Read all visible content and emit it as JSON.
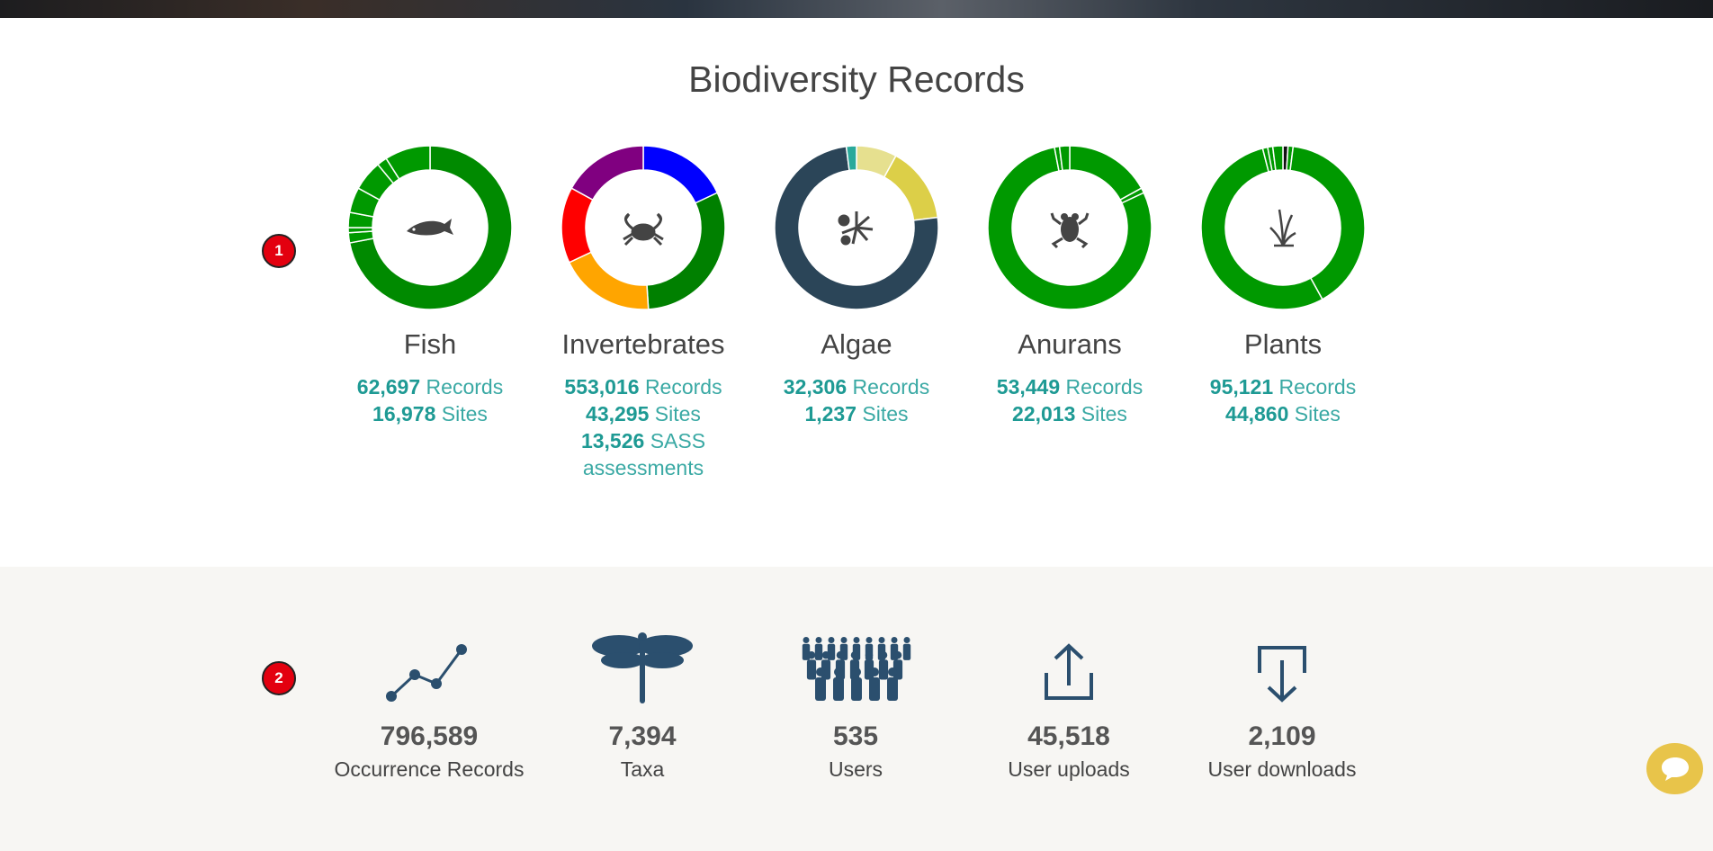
{
  "title": "Biodiversity Records",
  "badges": [
    "1",
    "2"
  ],
  "groups": [
    {
      "name": "Fish",
      "icon": "fish-icon",
      "stats": [
        {
          "value": "62,697",
          "label": "Records"
        },
        {
          "value": "16,978",
          "label": "Sites"
        }
      ],
      "slices": [
        {
          "value": 72,
          "color": "#008a00"
        },
        {
          "value": 2,
          "color": "#009900"
        },
        {
          "value": 1,
          "color": "#009900"
        },
        {
          "value": 3,
          "color": "#009900"
        },
        {
          "value": 5,
          "color": "#009900"
        },
        {
          "value": 6,
          "color": "#009900"
        },
        {
          "value": 2,
          "color": "#009900"
        },
        {
          "value": 9,
          "color": "#009900"
        }
      ]
    },
    {
      "name": "Invertebrates",
      "icon": "crab-icon",
      "stats": [
        {
          "value": "553,016",
          "label": "Records"
        },
        {
          "value": "43,295",
          "label": "Sites"
        },
        {
          "value": "13,526",
          "label": "SASS assessments"
        }
      ],
      "slices": [
        {
          "value": 18,
          "color": "#0000ff"
        },
        {
          "value": 31,
          "color": "#008000"
        },
        {
          "value": 19,
          "color": "#ffa500"
        },
        {
          "value": 15,
          "color": "#ff0000"
        },
        {
          "value": 17,
          "color": "#800080"
        }
      ]
    },
    {
      "name": "Algae",
      "icon": "algae-icon",
      "stats": [
        {
          "value": "32,306",
          "label": "Records"
        },
        {
          "value": "1,237",
          "label": "Sites"
        }
      ],
      "slices": [
        {
          "value": 8,
          "color": "#e6e08f"
        },
        {
          "value": 15,
          "color": "#dccf48"
        },
        {
          "value": 75,
          "color": "#2b4558"
        },
        {
          "value": 2,
          "color": "#2aa99b"
        }
      ]
    },
    {
      "name": "Anurans",
      "icon": "frog-icon",
      "stats": [
        {
          "value": "53,449",
          "label": "Records"
        },
        {
          "value": "22,013",
          "label": "Sites"
        }
      ],
      "slices": [
        {
          "value": 17,
          "color": "#009900"
        },
        {
          "value": 1,
          "color": "#009900"
        },
        {
          "value": 79,
          "color": "#009900"
        },
        {
          "value": 1,
          "color": "#009900"
        },
        {
          "value": 2,
          "color": "#009900"
        }
      ]
    },
    {
      "name": "Plants",
      "icon": "plant-icon",
      "stats": [
        {
          "value": "95,121",
          "label": "Records"
        },
        {
          "value": "44,860",
          "label": "Sites"
        }
      ],
      "slices": [
        {
          "value": 1,
          "color": "#111111"
        },
        {
          "value": 1,
          "color": "#009900"
        },
        {
          "value": 40,
          "color": "#009900"
        },
        {
          "value": 54,
          "color": "#009900"
        },
        {
          "value": 1,
          "color": "#009900"
        },
        {
          "value": 1,
          "color": "#009900"
        },
        {
          "value": 2,
          "color": "#009900"
        }
      ]
    }
  ],
  "summary": [
    {
      "value": "796,589",
      "label": "Occurrence Records",
      "icon": "line-chart-icon"
    },
    {
      "value": "7,394",
      "label": "Taxa",
      "icon": "dragonfly-icon"
    },
    {
      "value": "535",
      "label": "Users",
      "icon": "users-icon"
    },
    {
      "value": "45,518",
      "label": "User uploads",
      "icon": "upload-icon"
    },
    {
      "value": "2,109",
      "label": "User downloads",
      "icon": "download-icon"
    }
  ],
  "colors": {
    "accent": "#1e9a94",
    "icon": "#2b4f6e",
    "chat": "#e8c44a"
  }
}
